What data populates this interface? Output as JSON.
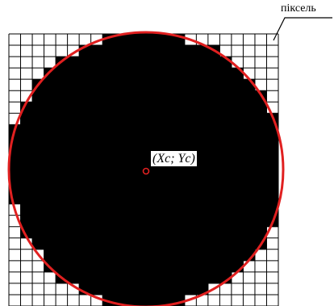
{
  "labels": {
    "pixel_callout": "піксель",
    "center_point": "(Xc; Yc)"
  },
  "colors": {
    "grid": "#000000",
    "pixel_fill": "#000000",
    "circle": "#e02020",
    "background": "#ffffff"
  },
  "grid": {
    "columns": 23,
    "rows": 24
  }
}
